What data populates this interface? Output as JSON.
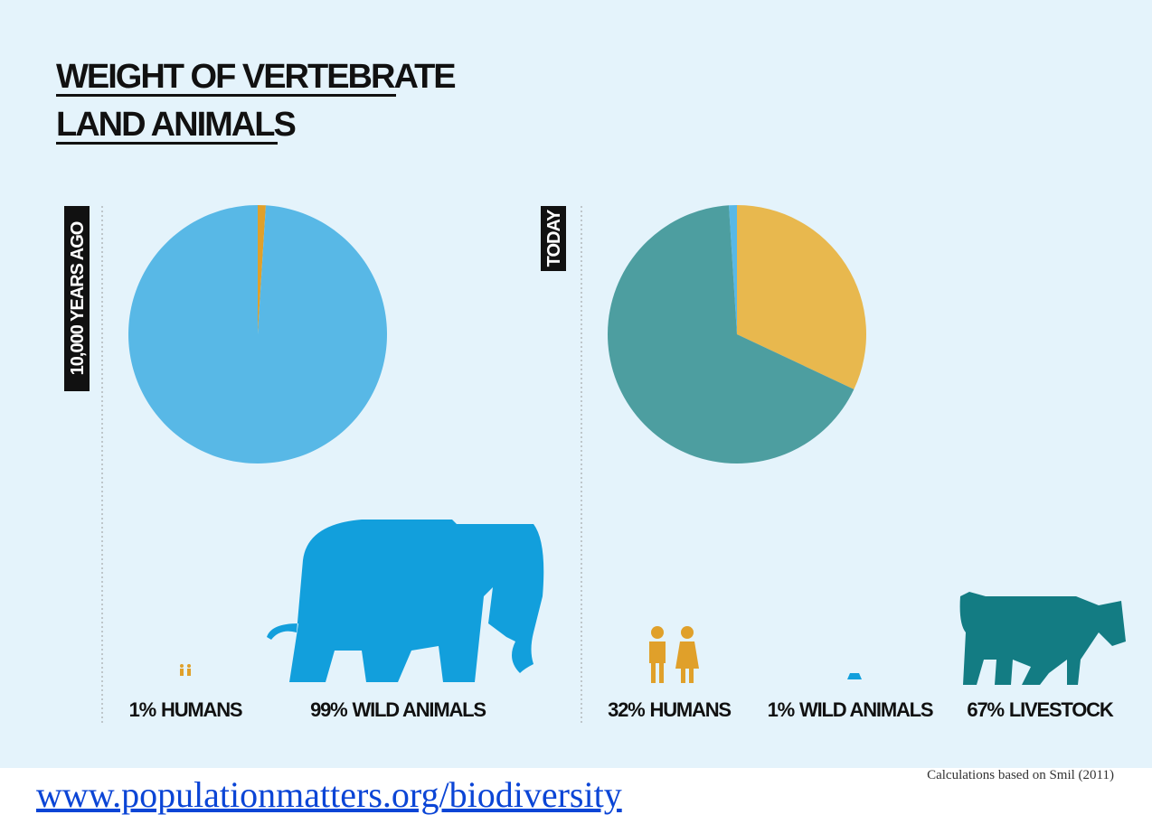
{
  "title_lines": [
    "WEIGHT OF VERTEBRATE",
    "LAND ANIMALS"
  ],
  "source": "Calculations based on Smil (2011)",
  "link": "www.populationmatters.org/biodiversity",
  "chart_data": [
    {
      "type": "pie",
      "title": "10,000 YEARS AGO",
      "categories": [
        "HUMANS",
        "WILD ANIMALS"
      ],
      "values": [
        1,
        99
      ],
      "value_labels": [
        "1%",
        "99%"
      ],
      "colors": [
        "#e0a02a",
        "#58b8e6"
      ]
    },
    {
      "type": "pie",
      "title": "TODAY",
      "categories": [
        "HUMANS",
        "WILD ANIMALS",
        "LIVESTOCK"
      ],
      "values": [
        32,
        1,
        67
      ],
      "value_labels": [
        "32%",
        "1%",
        "67%"
      ],
      "colors": [
        "#e8b84e",
        "#58b8e6",
        "#4d9ea0"
      ]
    }
  ]
}
